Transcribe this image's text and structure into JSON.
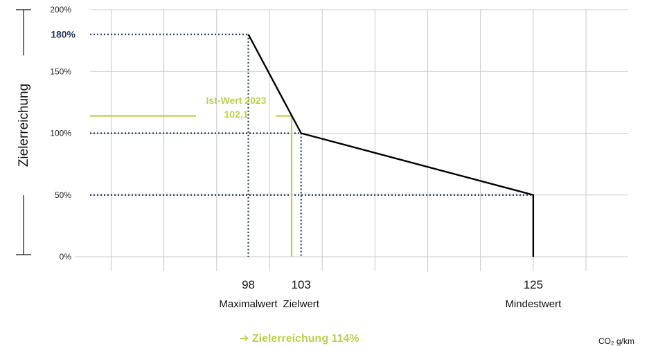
{
  "chart_data": {
    "type": "line",
    "ylabel": "Zielerreichung",
    "unit_label": "CO₂ g/km",
    "y_ticks": [
      {
        "value": 0,
        "label": "0%"
      },
      {
        "value": 50,
        "label": "50%"
      },
      {
        "value": 100,
        "label": "100%"
      },
      {
        "value": 150,
        "label": "150%"
      },
      {
        "value": 200,
        "label": "200%"
      }
    ],
    "ylim": [
      0,
      200
    ],
    "xlim": [
      83,
      134
    ],
    "grid": true,
    "series": [
      {
        "x": [
          98,
          103,
          125,
          125
        ],
        "y": [
          180,
          100,
          50,
          0
        ],
        "color": "#000000"
      }
    ],
    "x_markers": [
      {
        "value": 98,
        "number": "98",
        "name": "Maximalwert"
      },
      {
        "value": 103,
        "number": "103",
        "name": "Zielwert"
      },
      {
        "value": 125,
        "number": "125",
        "name": "Mindestwert"
      }
    ],
    "highlight_label": {
      "value": 180,
      "text": "180%"
    },
    "reference_levels": [
      180,
      100,
      50
    ],
    "ist_wert": {
      "x": 102.1,
      "y": 114,
      "title": "Ist-Wert 2023",
      "value_text": "102,1"
    },
    "result_text": "➔ Zielerreichung 114%",
    "colors": {
      "line": "#000000",
      "dotted": "#1f3a5f",
      "accent": "#b9d24b",
      "grid": "#c8c8c8",
      "highlight": "#1f3a5f"
    }
  }
}
